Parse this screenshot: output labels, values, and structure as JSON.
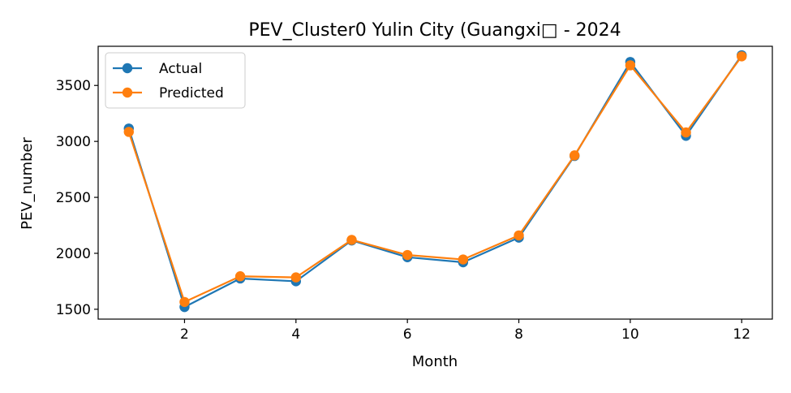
{
  "chart_data": {
    "type": "line",
    "title": "PEV_Cluster0 Yulin City (Guangxi□ - 2024",
    "xlabel": "Month",
    "ylabel": "PEV_number",
    "xlim": [
      0.45,
      12.55
    ],
    "ylim": [
      1412,
      3850
    ],
    "x_ticks": [
      2,
      4,
      6,
      8,
      10,
      12
    ],
    "y_ticks": [
      1500,
      2000,
      2500,
      3000,
      3500
    ],
    "x": [
      1,
      2,
      3,
      4,
      5,
      6,
      7,
      8,
      9,
      10,
      11,
      12
    ],
    "series": [
      {
        "name": "Actual",
        "color": "#1f77b4",
        "values": [
          3115,
          1520,
          1775,
          1750,
          2115,
          1965,
          1920,
          2140,
          2870,
          3710,
          3050,
          3770
        ]
      },
      {
        "name": "Predicted",
        "color": "#ff7f0e",
        "values": [
          3085,
          1565,
          1795,
          1785,
          2120,
          1985,
          1945,
          2160,
          2875,
          3680,
          3080,
          3760
        ]
      }
    ],
    "legend_position": "top-left",
    "grid": false
  }
}
